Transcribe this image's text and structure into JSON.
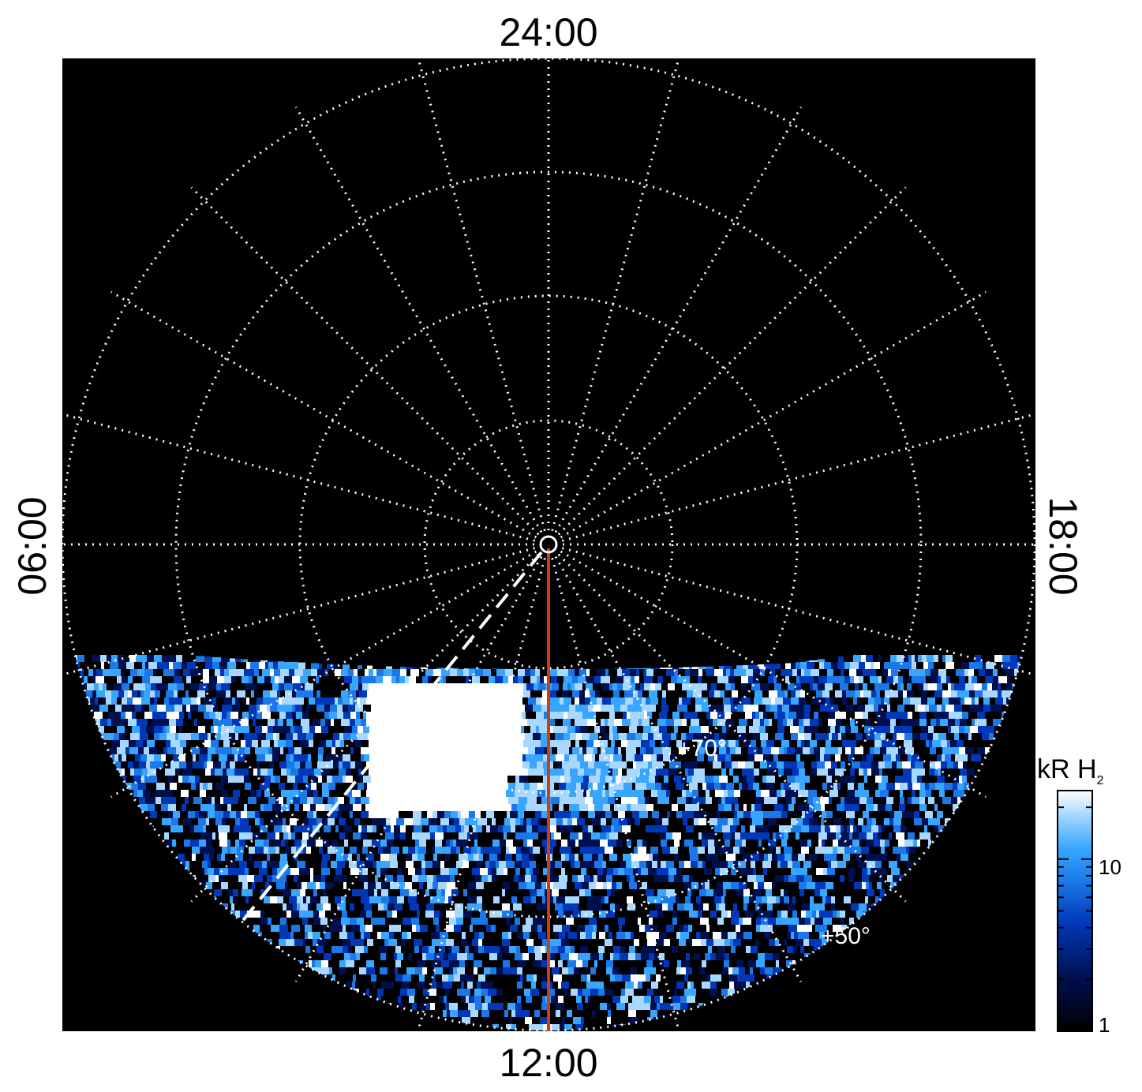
{
  "chart_data": {
    "type": "heatmap",
    "projection": "polar",
    "local_time_labels": {
      "top": "24:00",
      "bottom": "12:00",
      "left": "06:00",
      "right": "18:00"
    },
    "latitude_labels": [
      "+70°",
      "+50°"
    ],
    "colorbar": {
      "title": "kR H",
      "title_subscript": "2",
      "scale": "log",
      "range": [
        1,
        25
      ],
      "ticks": [
        "10",
        "1"
      ],
      "colors": [
        "#000000",
        "#00104f",
        "#0038b8",
        "#1a78e8",
        "#38a6ff",
        "#a8d8ff",
        "#ffffff"
      ]
    },
    "grid": true,
    "colors": {
      "background": "#000000",
      "grid": "#ffffff",
      "meridian_line": "#d33a10"
    }
  }
}
